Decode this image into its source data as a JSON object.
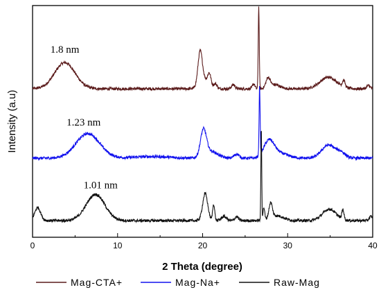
{
  "chart_data": {
    "type": "line",
    "xlabel": "2 Theta (degree)",
    "ylabel": "Intensity (a.u)",
    "xlim": [
      0,
      40
    ],
    "xticks": [
      0,
      10,
      20,
      30,
      40
    ],
    "y_ticks_shown": false,
    "grid": false,
    "legend_position": "bottom",
    "series": [
      {
        "name": "Mag-CTA+",
        "color": "#5a1a1a",
        "offset": 2.0,
        "peaks": [
          {
            "x": 3.8,
            "h": 0.32,
            "w": 1.2
          },
          {
            "x": 19.7,
            "h": 0.38,
            "w": 0.25
          },
          {
            "x": 20.1,
            "h": 0.12,
            "w": 0.5
          },
          {
            "x": 20.8,
            "h": 0.15,
            "w": 0.2
          },
          {
            "x": 21.5,
            "h": 0.06,
            "w": 0.2
          },
          {
            "x": 23.6,
            "h": 0.05,
            "w": 0.2
          },
          {
            "x": 26.0,
            "h": 0.06,
            "w": 0.15
          },
          {
            "x": 26.6,
            "h": 1.0,
            "w": 0.06
          },
          {
            "x": 27.7,
            "h": 0.12,
            "w": 0.25
          },
          {
            "x": 28.5,
            "h": 0.05,
            "w": 0.6
          },
          {
            "x": 34.8,
            "h": 0.14,
            "w": 1.0
          },
          {
            "x": 36.6,
            "h": 0.08,
            "w": 0.15
          },
          {
            "x": 39.5,
            "h": 0.04,
            "w": 0.2
          }
        ]
      },
      {
        "name": "Mag-Na+",
        "color": "#1010ee",
        "offset": 1.0,
        "peaks": [
          {
            "x": 6.5,
            "h": 0.3,
            "w": 1.4
          },
          {
            "x": 14.0,
            "h": 0.02,
            "w": 2.0
          },
          {
            "x": 20.1,
            "h": 0.32,
            "w": 0.35
          },
          {
            "x": 21.0,
            "h": 0.08,
            "w": 0.8
          },
          {
            "x": 24.0,
            "h": 0.05,
            "w": 0.3
          },
          {
            "x": 26.7,
            "h": 0.85,
            "w": 0.06
          },
          {
            "x": 27.8,
            "h": 0.2,
            "w": 0.6
          },
          {
            "x": 29.0,
            "h": 0.06,
            "w": 1.0
          },
          {
            "x": 34.8,
            "h": 0.16,
            "w": 0.8
          },
          {
            "x": 36.3,
            "h": 0.06,
            "w": 0.5
          }
        ]
      },
      {
        "name": "Raw-Mag",
        "color": "#111111",
        "offset": 0.0,
        "peaks": [
          {
            "x": 0.6,
            "h": 0.16,
            "w": 0.35
          },
          {
            "x": 7.4,
            "h": 0.32,
            "w": 1.1
          },
          {
            "x": 20.3,
            "h": 0.33,
            "w": 0.3
          },
          {
            "x": 21.3,
            "h": 0.2,
            "w": 0.12
          },
          {
            "x": 22.5,
            "h": 0.05,
            "w": 0.3
          },
          {
            "x": 24.0,
            "h": 0.05,
            "w": 0.2
          },
          {
            "x": 26.9,
            "h": 1.12,
            "w": 0.05
          },
          {
            "x": 27.2,
            "h": 0.15,
            "w": 0.1
          },
          {
            "x": 28.0,
            "h": 0.18,
            "w": 0.2
          },
          {
            "x": 28.7,
            "h": 0.06,
            "w": 0.8
          },
          {
            "x": 34.9,
            "h": 0.14,
            "w": 0.8
          },
          {
            "x": 36.5,
            "h": 0.12,
            "w": 0.12
          },
          {
            "x": 39.8,
            "h": 0.05,
            "w": 0.2
          }
        ]
      }
    ],
    "annotations": [
      {
        "text": "1.8 nm",
        "x": 3.8,
        "series": 0
      },
      {
        "text": "1.23 nm",
        "x": 6.0,
        "series": 1
      },
      {
        "text": "1.01 nm",
        "x": 8.0,
        "series": 2
      }
    ]
  }
}
